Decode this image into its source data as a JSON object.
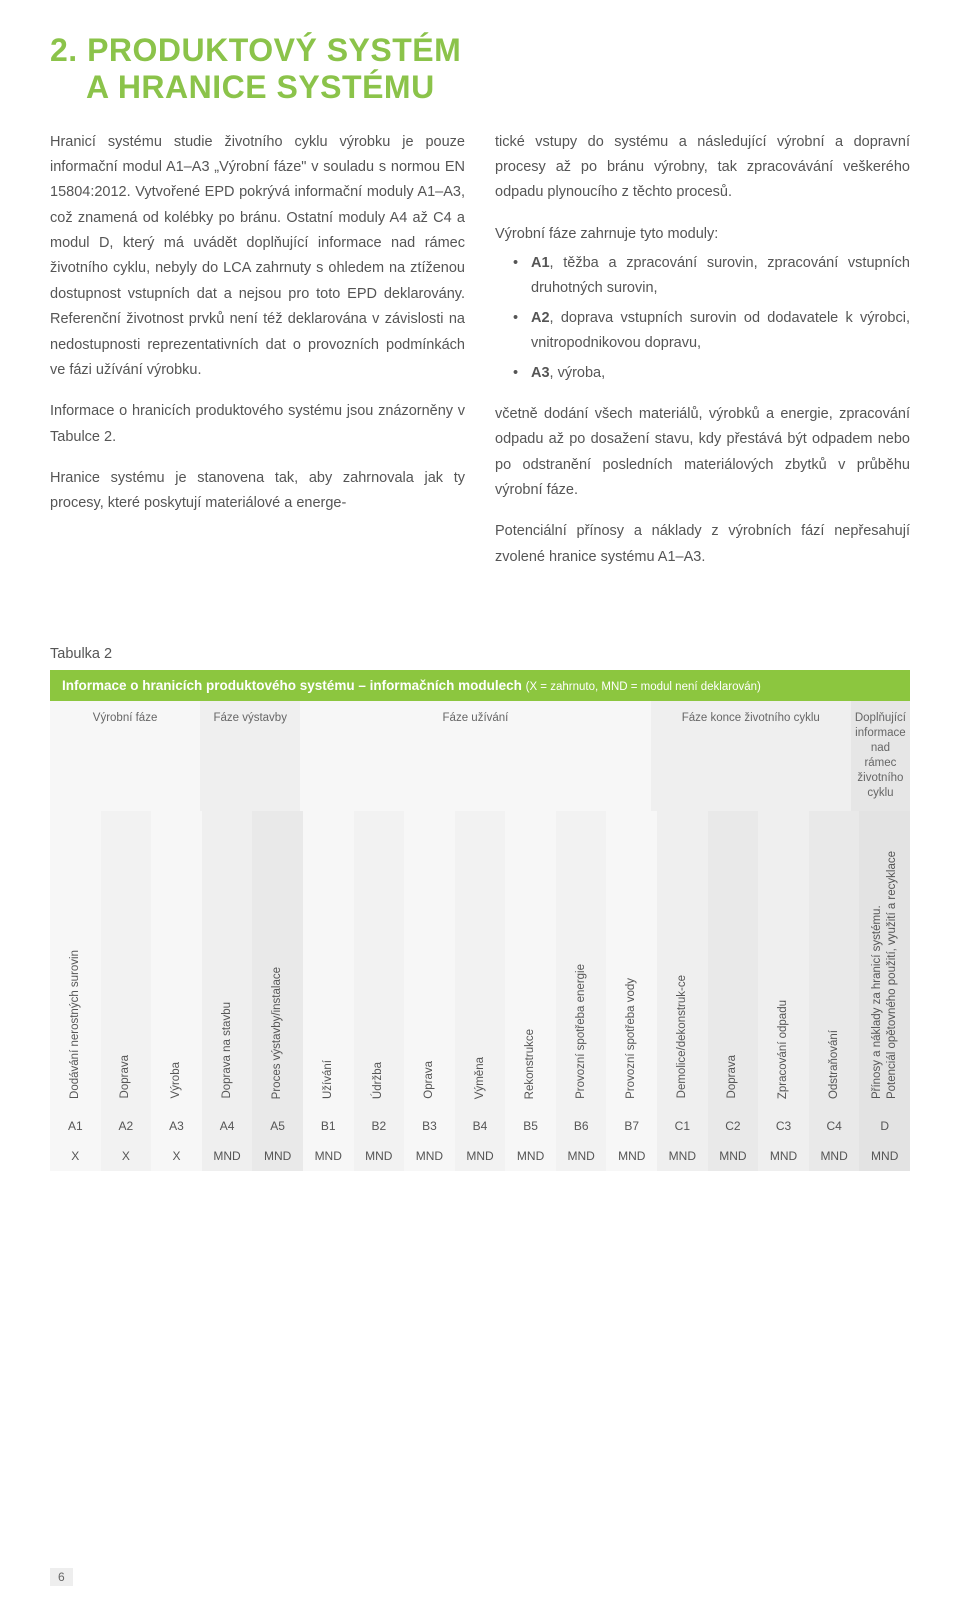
{
  "colors": {
    "accent": "#8bc34a",
    "accent_band": "#8cc63f",
    "text": "#555555",
    "bg_light0": "#f7f7f7",
    "bg_light1": "#f0f0f0",
    "bg_light2": "#e8e8e8",
    "bg_band_alt": "#dfe9d3"
  },
  "heading_fontsize": 32,
  "heading": {
    "line1": "2. PRODUKTOVÝ SYSTÉM",
    "line2": "A HRANICE SYSTÉMU"
  },
  "left_col": {
    "p1": "Hranicí systému studie životního cyklu výrobku je pouze informační modul A1–A3 „Výrobní fáze\" v souladu s normou EN 15804:2012. Vytvořené EPD pokrývá informační moduly A1–A3, což znamená od kolébky po bránu. Ostatní moduly A4 až C4 a modul D, který má uvádět doplňující informace nad rámec životního cyklu, nebyly do LCA zahrnuty s ohledem na ztíženou dostupnost vstupních dat a nejsou pro toto EPD deklarovány. Referenční životnost prvků není též deklarována v závislosti na nedostupnosti reprezentativních dat o provozních podmínkách ve fázi užívání výrobku.",
    "p2": "Informace o hranicích produktového systému jsou znázorněny v Tabulce 2.",
    "p3": "Hranice systému je stanovena tak, aby zahrnovala jak ty procesy, které poskytují materiálové a energe-"
  },
  "right_col": {
    "p1": "tické vstupy do systému a následující výrobní a dopravní procesy až po bránu výrobny, tak zpracovávání veškerého odpadu plynoucího z těchto procesů.",
    "intro": "Výrobní fáze zahrnuje tyto moduly:",
    "bullets": [
      {
        "tag": "A1",
        "text": ", těžba a zpracování surovin, zpracování vstupních druhotných surovin,"
      },
      {
        "tag": "A2",
        "text": ", doprava vstupních surovin od dodavatele k výrobci, vnitropodnikovou dopravu,"
      },
      {
        "tag": "A3",
        "text": ", výroba,"
      }
    ],
    "p_after": "včetně dodání všech materiálů, výrobků a energie, zpracování odpadu až po dosažení stavu, kdy přestává být odpadem nebo po odstranění posledních materiálových zbytků v průběhu výrobní fáze.",
    "p_last": "Potenciální přínosy a náklady z výrobních fází nepřesahují zvolené hranice systému A1–A3."
  },
  "table": {
    "caption": "Tabulka 2",
    "header_strong": "Informace o hranicích produktového systému – informačních modulech",
    "header_legend": "(X = zahrnuto, MND = modul není deklarován)",
    "phase_groups": [
      {
        "label": "Výrobní fáze",
        "span": 3,
        "bg": "#f7f7f7"
      },
      {
        "label": "Fáze výstavby",
        "span": 2,
        "bg": "#efefef"
      },
      {
        "label": "Fáze užívání",
        "span": 7,
        "bg": "#f7f7f7"
      },
      {
        "label": "Fáze konce životního cyklu",
        "span": 4,
        "bg": "#efefef"
      },
      {
        "label": "Doplňující informace nad rámec životního cyklu",
        "span": 1,
        "bg": "#e6e6e6"
      }
    ],
    "columns": [
      {
        "code": "A1",
        "label": "Dodávání nerostných surovin",
        "val": "X",
        "bg": "#f7f7f7"
      },
      {
        "code": "A2",
        "label": "Doprava",
        "val": "X",
        "bg": "#f2f2f2"
      },
      {
        "code": "A3",
        "label": "Výroba",
        "val": "X",
        "bg": "#f7f7f7"
      },
      {
        "code": "A4",
        "label": "Doprava na stavbu",
        "val": "MND",
        "bg": "#efefef"
      },
      {
        "code": "A5",
        "label": "Proces výstavby/instalace",
        "val": "MND",
        "bg": "#e9e9e9"
      },
      {
        "code": "B1",
        "label": "Užívání",
        "val": "MND",
        "bg": "#f7f7f7"
      },
      {
        "code": "B2",
        "label": "Údržba",
        "val": "MND",
        "bg": "#f2f2f2"
      },
      {
        "code": "B3",
        "label": "Oprava",
        "val": "MND",
        "bg": "#f7f7f7"
      },
      {
        "code": "B4",
        "label": "Výměna",
        "val": "MND",
        "bg": "#f2f2f2"
      },
      {
        "code": "B5",
        "label": "Rekonstrukce",
        "val": "MND",
        "bg": "#f7f7f7"
      },
      {
        "code": "B6",
        "label": "Provozní spotřeba energie",
        "val": "MND",
        "bg": "#f2f2f2"
      },
      {
        "code": "B7",
        "label": "Provozní spotřeba vody",
        "val": "MND",
        "bg": "#f7f7f7"
      },
      {
        "code": "C1",
        "label": "Demolice/dekonstruk-ce",
        "val": "MND",
        "bg": "#efefef"
      },
      {
        "code": "C2",
        "label": "Doprava",
        "val": "MND",
        "bg": "#e9e9e9"
      },
      {
        "code": "C3",
        "label": "Zpracování odpadu",
        "val": "MND",
        "bg": "#efefef"
      },
      {
        "code": "C4",
        "label": "Odstraňování",
        "val": "MND",
        "bg": "#e9e9e9"
      },
      {
        "code": "D",
        "label": "Přínosy a náklady za hranicí systému.\nPotenciál opětovného použití, využití a recyklace",
        "val": "MND",
        "bg": "#e3e3e3"
      }
    ]
  },
  "page_number": "6"
}
